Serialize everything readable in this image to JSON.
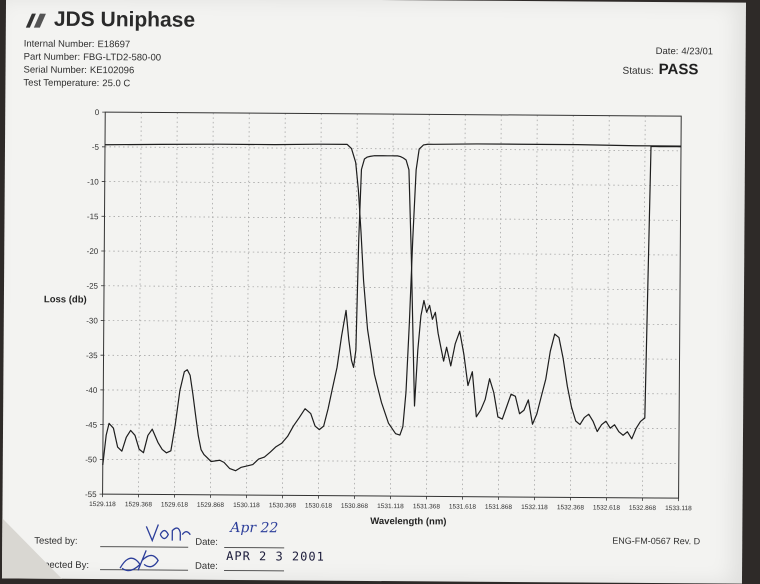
{
  "header": {
    "brand": "JDS Uniphase",
    "fields": [
      {
        "label": "Internal Number:",
        "value": "E18697"
      },
      {
        "label": "Part Number:",
        "value": "FBG-LTD2-580-00"
      },
      {
        "label": "Serial Number:",
        "value": "KE102096"
      },
      {
        "label": "Test Temperature:",
        "value": "25.0 C"
      }
    ],
    "date_label": "Date:",
    "date_value": "4/23/01",
    "status_label": "Status:",
    "status_value": "PASS"
  },
  "chart_data": {
    "type": "line",
    "title": "",
    "xlabel": "Wavelength (nm)",
    "ylabel": "Loss (db)",
    "xlim": [
      1529.118,
      1533.118
    ],
    "ylim": [
      -55,
      0
    ],
    "xticks": [
      "1529.118",
      "1529.368",
      "1529.618",
      "1529.868",
      "1530.118",
      "1530.368",
      "1530.618",
      "1530.868",
      "1531.118",
      "1531.368",
      "1531.618",
      "1531.868",
      "1532.118",
      "1532.368",
      "1532.618",
      "1532.868",
      "1533.118"
    ],
    "yticks": [
      "0",
      "-5",
      "-10",
      "-15",
      "-20",
      "-25",
      "-30",
      "-35",
      "-40",
      "-45",
      "-50",
      "-55"
    ],
    "grid": true,
    "legend": "none",
    "series": [
      {
        "x": [
          1529.118,
          1529.14,
          1529.16,
          1529.19,
          1529.22,
          1529.25,
          1529.28,
          1529.31,
          1529.34,
          1529.37,
          1529.4,
          1529.43,
          1529.46,
          1529.5,
          1529.53,
          1529.56,
          1529.59,
          1529.62,
          1529.65,
          1529.68,
          1529.7,
          1529.72,
          1529.74,
          1529.76,
          1529.78,
          1529.8,
          1529.82,
          1529.84,
          1529.87,
          1529.9,
          1529.93,
          1529.96,
          1530.0,
          1530.04,
          1530.08,
          1530.12,
          1530.16,
          1530.2,
          1530.24,
          1530.28,
          1530.32,
          1530.36,
          1530.4,
          1530.44,
          1530.48,
          1530.52,
          1530.56,
          1530.59,
          1530.62,
          1530.65,
          1530.68,
          1530.71,
          1530.74,
          1530.77,
          1530.8,
          1530.82,
          1530.84,
          1530.855,
          1530.87,
          1530.885,
          1530.9,
          1530.92,
          1530.94,
          1530.96,
          1530.99,
          1531.02,
          1531.05,
          1531.08,
          1531.11,
          1531.13,
          1531.15,
          1531.17,
          1531.19,
          1531.21,
          1531.23,
          1531.25,
          1531.27,
          1531.28,
          1531.3,
          1531.32,
          1531.34,
          1531.36,
          1531.38,
          1531.4,
          1531.42,
          1531.44,
          1531.46,
          1531.48,
          1531.5,
          1531.53,
          1531.56,
          1531.59,
          1531.62,
          1531.65,
          1531.68,
          1531.71,
          1531.74,
          1531.77,
          1531.8,
          1531.83,
          1531.86,
          1531.89,
          1531.92,
          1531.95,
          1531.98,
          1532.01,
          1532.04,
          1532.07,
          1532.1,
          1532.13,
          1532.16,
          1532.19,
          1532.22,
          1532.25,
          1532.28,
          1532.31,
          1532.34,
          1532.37,
          1532.4,
          1532.43,
          1532.46,
          1532.49,
          1532.52,
          1532.55,
          1532.58,
          1532.61,
          1532.64,
          1532.67,
          1532.7,
          1532.73,
          1532.76,
          1532.79,
          1532.82,
          1532.85,
          1532.88,
          1532.91,
          1532.94,
          1532.97,
          1533.0,
          1533.03,
          1533.06,
          1533.09,
          1533.118
        ],
        "y": [
          -50.8,
          -46.5,
          -44.8,
          -45.5,
          -48.2,
          -48.8,
          -46.8,
          -45.8,
          -46.5,
          -48.5,
          -49.0,
          -46.5,
          -45.6,
          -47.5,
          -48.5,
          -49.0,
          -48.7,
          -44.8,
          -40.0,
          -37.3,
          -37.0,
          -37.8,
          -40.5,
          -43.5,
          -46.5,
          -48.5,
          -49.2,
          -49.6,
          -50.2,
          -50.1,
          -50.0,
          -50.3,
          -51.2,
          -51.5,
          -51.0,
          -50.8,
          -50.6,
          -49.8,
          -49.5,
          -48.8,
          -48.0,
          -47.5,
          -46.5,
          -45.0,
          -43.8,
          -42.5,
          -43.2,
          -45.0,
          -45.5,
          -45.0,
          -42.5,
          -39.5,
          -36.5,
          -32.0,
          -28.3,
          -32.5,
          -35.5,
          -36.5,
          -34.0,
          -18.0,
          -8.0,
          -6.5,
          -6.2,
          -6.1,
          -6.0,
          -6.0,
          -6.0,
          -6.0,
          -6.0,
          -6.0,
          -6.0,
          -6.1,
          -6.3,
          -6.6,
          -8.0,
          -20.0,
          -35.0,
          -42.0,
          -34.0,
          -29.0,
          -26.8,
          -28.5,
          -27.5,
          -29.5,
          -28.5,
          -31.5,
          -33.5,
          -35.5,
          -33.5,
          -36.2,
          -33.0,
          -31.2,
          -34.5,
          -39.0,
          -37.0,
          -43.5,
          -42.5,
          -41.0,
          -38.0,
          -40.0,
          -43.5,
          -43.8,
          -42.0,
          -40.2,
          -40.5,
          -43.0,
          -42.5,
          -41.0,
          -44.5,
          -43.0,
          -40.5,
          -38.0,
          -34.0,
          -31.5,
          -32.0,
          -35.0,
          -39.0,
          -42.0,
          -44.0,
          -44.5,
          -43.5,
          -43.0,
          -44.0,
          -45.5,
          -44.5,
          -44.0,
          -45.0,
          -44.5,
          -45.5,
          -46.0,
          -45.5,
          -46.5,
          -45.0,
          -44.0,
          -43.5,
          -4.4,
          -4.4,
          -4.4,
          -4.4,
          -4.4,
          -4.4,
          -4.4,
          -4.4
        ]
      },
      {
        "x": [
          1529.118,
          1529.5,
          1529.9,
          1530.3,
          1530.6,
          1530.8,
          1530.83,
          1530.86,
          1530.88,
          1530.9,
          1530.92,
          1530.95,
          1531.0,
          1531.05,
          1531.1,
          1531.15,
          1531.18,
          1531.2,
          1531.22,
          1531.24,
          1531.26,
          1531.28,
          1531.3,
          1531.33,
          1531.36,
          1531.4,
          1531.7,
          1532.0,
          1532.4,
          1532.8,
          1533.118
        ],
        "y": [
          -4.7,
          -4.6,
          -4.5,
          -4.5,
          -4.4,
          -4.4,
          -5.0,
          -7.0,
          -11.0,
          -17.0,
          -24.0,
          -31.0,
          -37.5,
          -41.5,
          -44.5,
          -46.0,
          -46.2,
          -45.0,
          -40.0,
          -30.0,
          -18.0,
          -8.0,
          -5.0,
          -4.4,
          -4.3,
          -4.3,
          -4.2,
          -4.2,
          -4.2,
          -4.3,
          -4.3
        ]
      }
    ]
  },
  "footer": {
    "tested_by_label": "Tested by:",
    "date_label_1": "Date:",
    "inspected_by_label": "nspected By:",
    "date_label_2": "Date:",
    "stamp_date": "APR 2 3 2001",
    "handwritten_date": "Apr 22",
    "form_number": "ENG-FM-0567 Rev. D"
  }
}
